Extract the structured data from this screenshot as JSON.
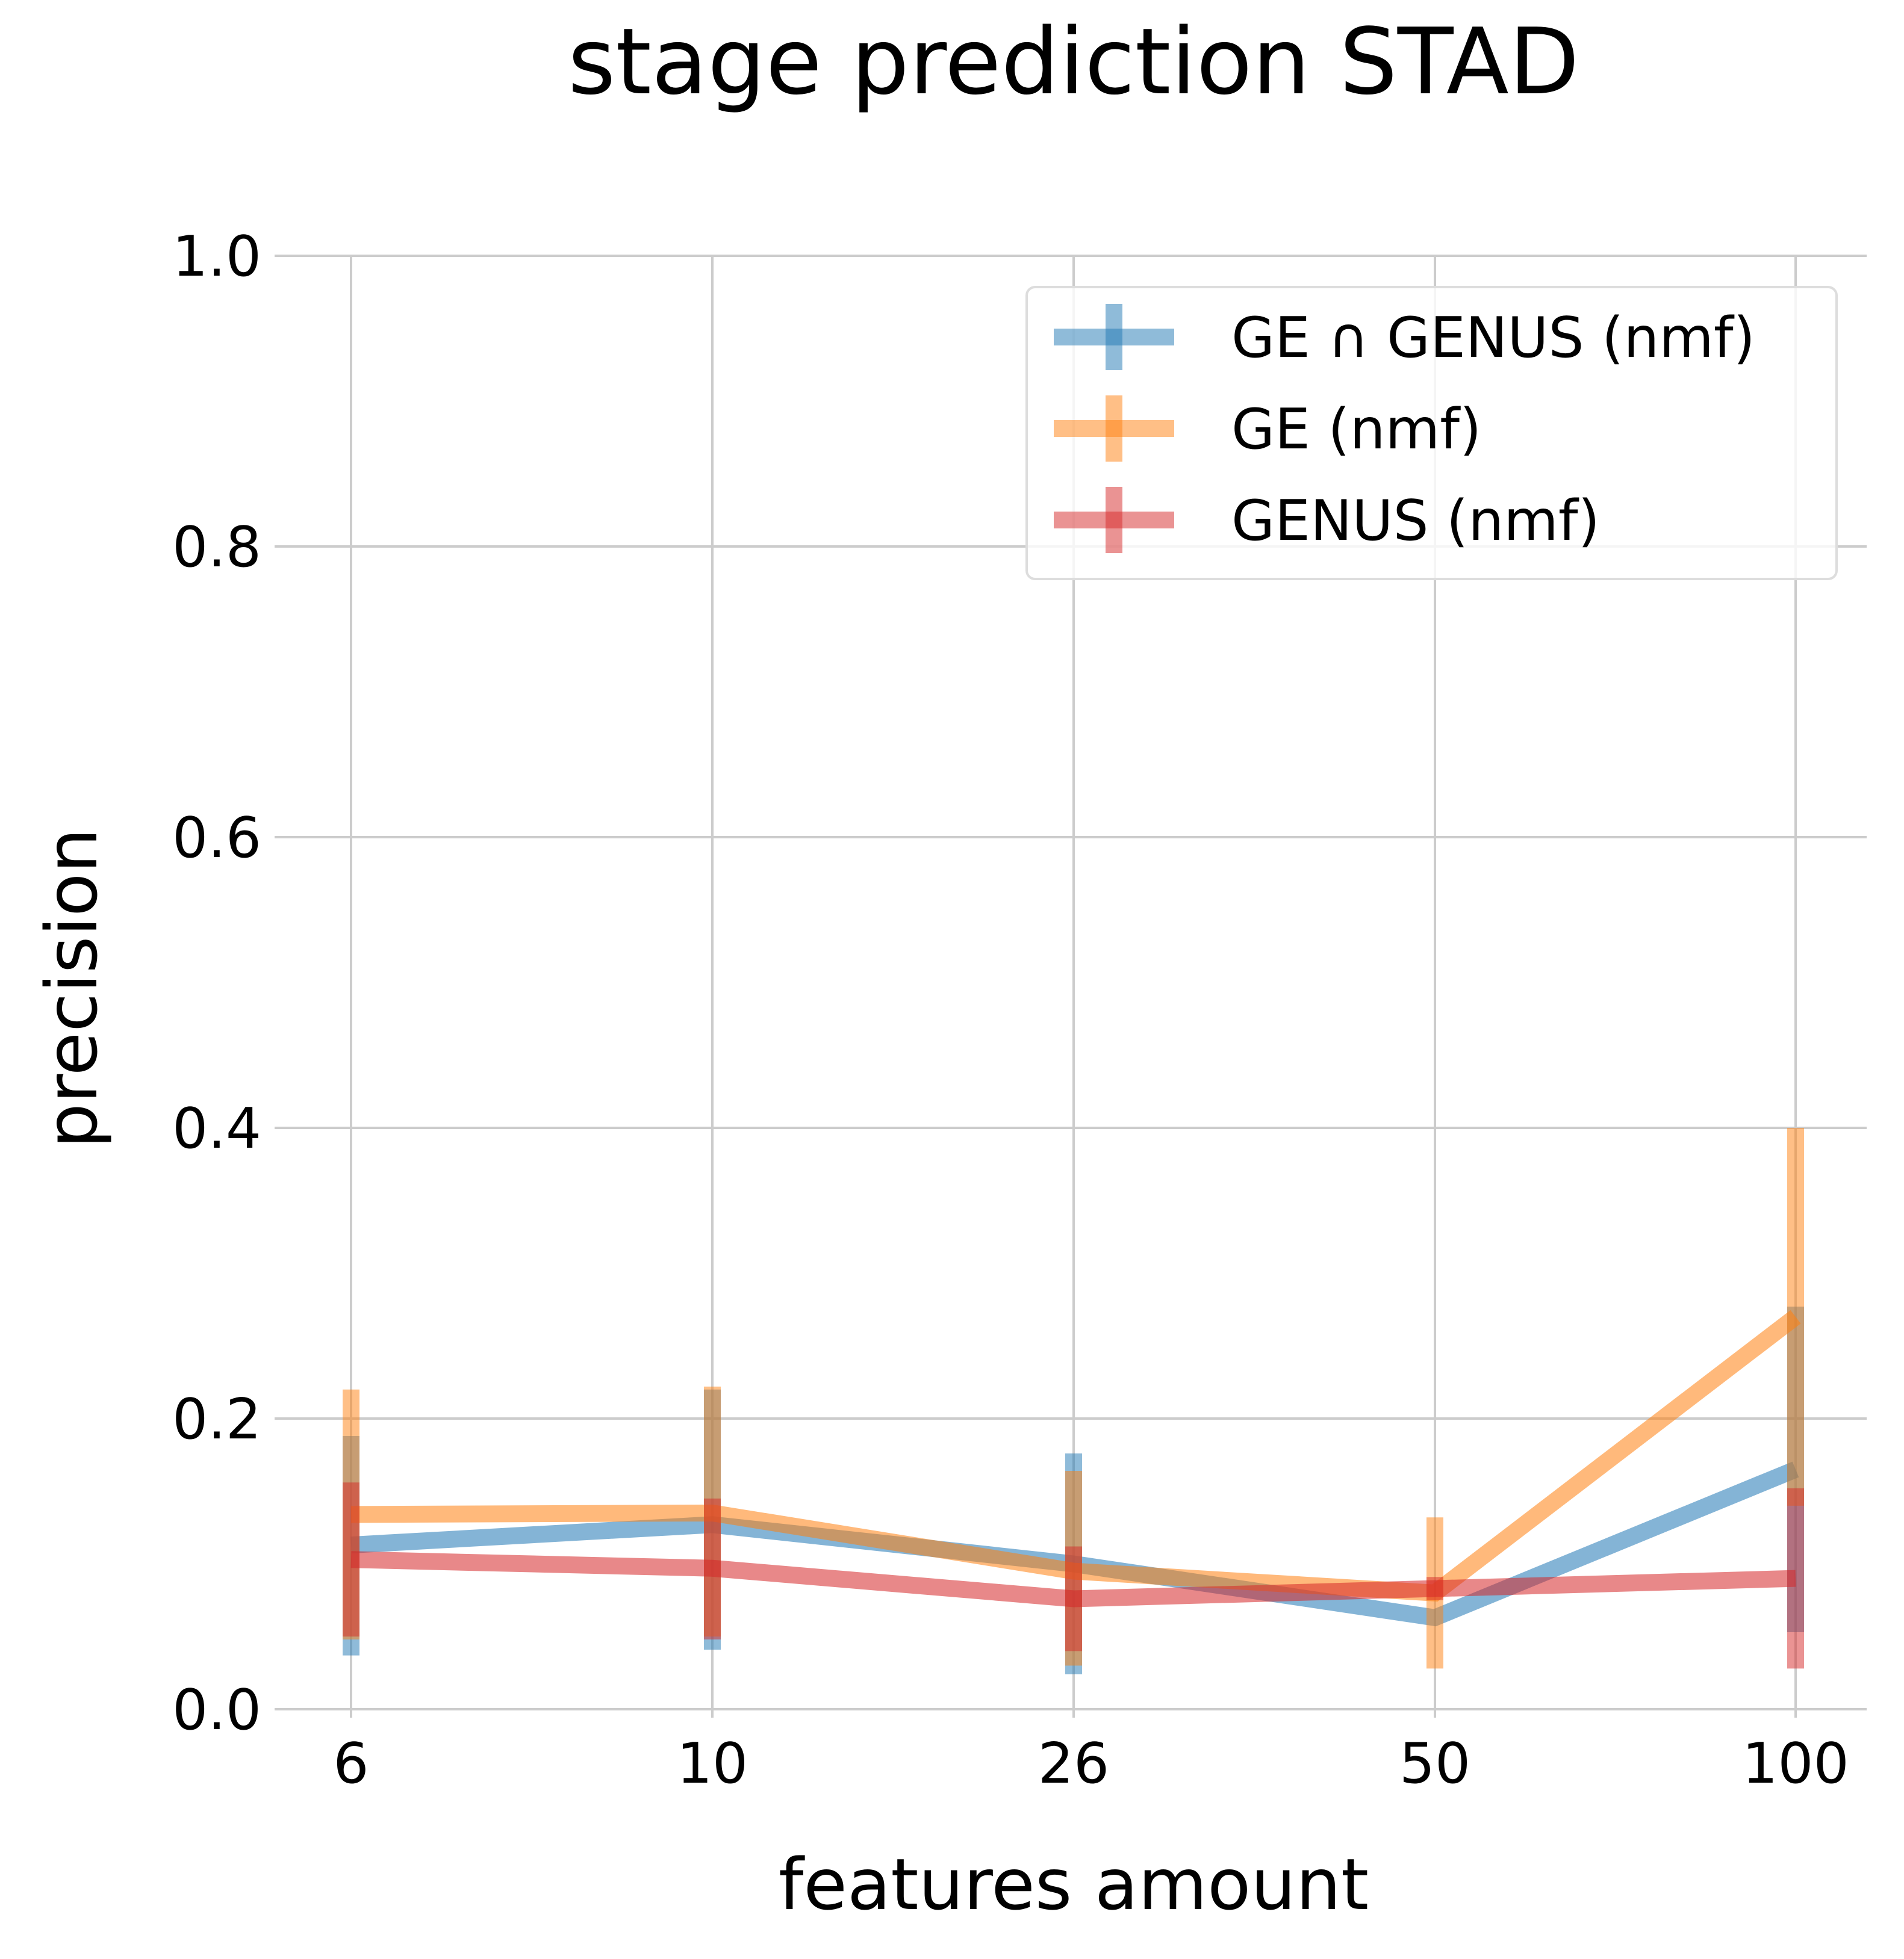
{
  "chart_data": {
    "type": "line",
    "title": "stage prediction STAD",
    "xlabel": "features amount",
    "ylabel": "precision",
    "categories": [
      "6",
      "10",
      "26",
      "50",
      "100"
    ],
    "ylim": [
      0,
      1.0
    ],
    "yticks": [
      "0.0",
      "0.2",
      "0.4",
      "0.6",
      "0.8",
      "1.0"
    ],
    "grid": true,
    "legend_position": "top-right",
    "error_bars": true,
    "series": [
      {
        "name": "GE ∩ GENUS (nmf)",
        "color": "#1f77b4",
        "values": [
          0.113,
          0.127,
          0.1,
          0.063,
          0.165
        ],
        "lower": [
          0.037,
          0.041,
          0.024,
          0.063,
          0.053
        ],
        "upper": [
          0.188,
          0.22,
          0.176,
          0.063,
          0.277
        ]
      },
      {
        "name": "GE (nmf)",
        "color": "#ff7f0e",
        "values": [
          0.134,
          0.135,
          0.095,
          0.08,
          0.27
        ],
        "lower": [
          0.048,
          0.05,
          0.03,
          0.028,
          0.14
        ],
        "upper": [
          0.22,
          0.222,
          0.164,
          0.132,
          0.4
        ]
      },
      {
        "name": "GENUS (nmf)",
        "color": "#d62728",
        "values": [
          0.103,
          0.097,
          0.076,
          0.083,
          0.09
        ],
        "lower": [
          0.05,
          0.048,
          0.04,
          0.075,
          0.028
        ],
        "upper": [
          0.156,
          0.145,
          0.112,
          0.091,
          0.152
        ]
      }
    ]
  }
}
